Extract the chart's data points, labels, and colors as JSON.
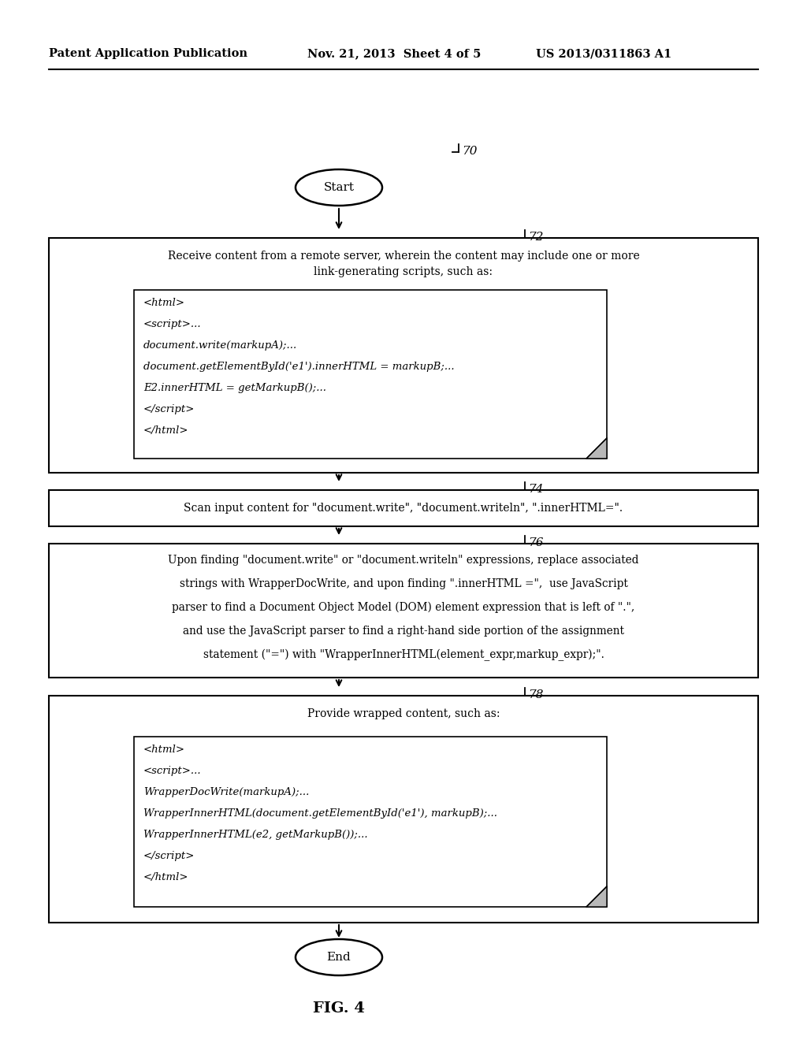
{
  "bg_color": "#ffffff",
  "header_left": "Patent Application Publication",
  "header_mid": "Nov. 21, 2013  Sheet 4 of 5",
  "header_right": "US 2013/0311863 A1",
  "fig_label": "FIG. 4",
  "start_label": "Start",
  "end_label": "End",
  "box72_line1": "Receive content from a remote server, wherein the content may include one or more",
  "box72_line2": "link-generating scripts, such as:",
  "box72_code_lines": [
    "<html>",
    "<script>...",
    "document.write(markupA);...",
    "document.getElementById('e1').innerHTML = markupB;...",
    "E2.innerHTML = getMarkupB();...",
    "</script>",
    "</html>"
  ],
  "box74_text": "Scan input content for \"document.write\", \"document.writeln\", \".innerHTML=\".",
  "box76_lines": [
    "Upon finding \"document.write\" or \"document.writeln\" expressions, replace associated",
    "strings with WrapperDocWrite, and upon finding \".innerHTML =\",  use JavaScript",
    "parser to find a Document Object Model (DOM) element expression that is left of \".\",",
    "and use the JavaScript parser to find a right-hand side portion of the assignment",
    "statement (\"=\") with \"WrapperInnerHTML(element_expr,markup_expr);\"."
  ],
  "box78_title": "Provide wrapped content, such as:",
  "box78_code_lines": [
    "<html>",
    "<script>...",
    "WrapperDocWrite(markupA);...",
    "WrapperInnerHTML(document.getElementById('e1'), markupB);...",
    "WrapperInnerHTML(e2, getMarkupB());...",
    "</script>",
    "</html>"
  ]
}
